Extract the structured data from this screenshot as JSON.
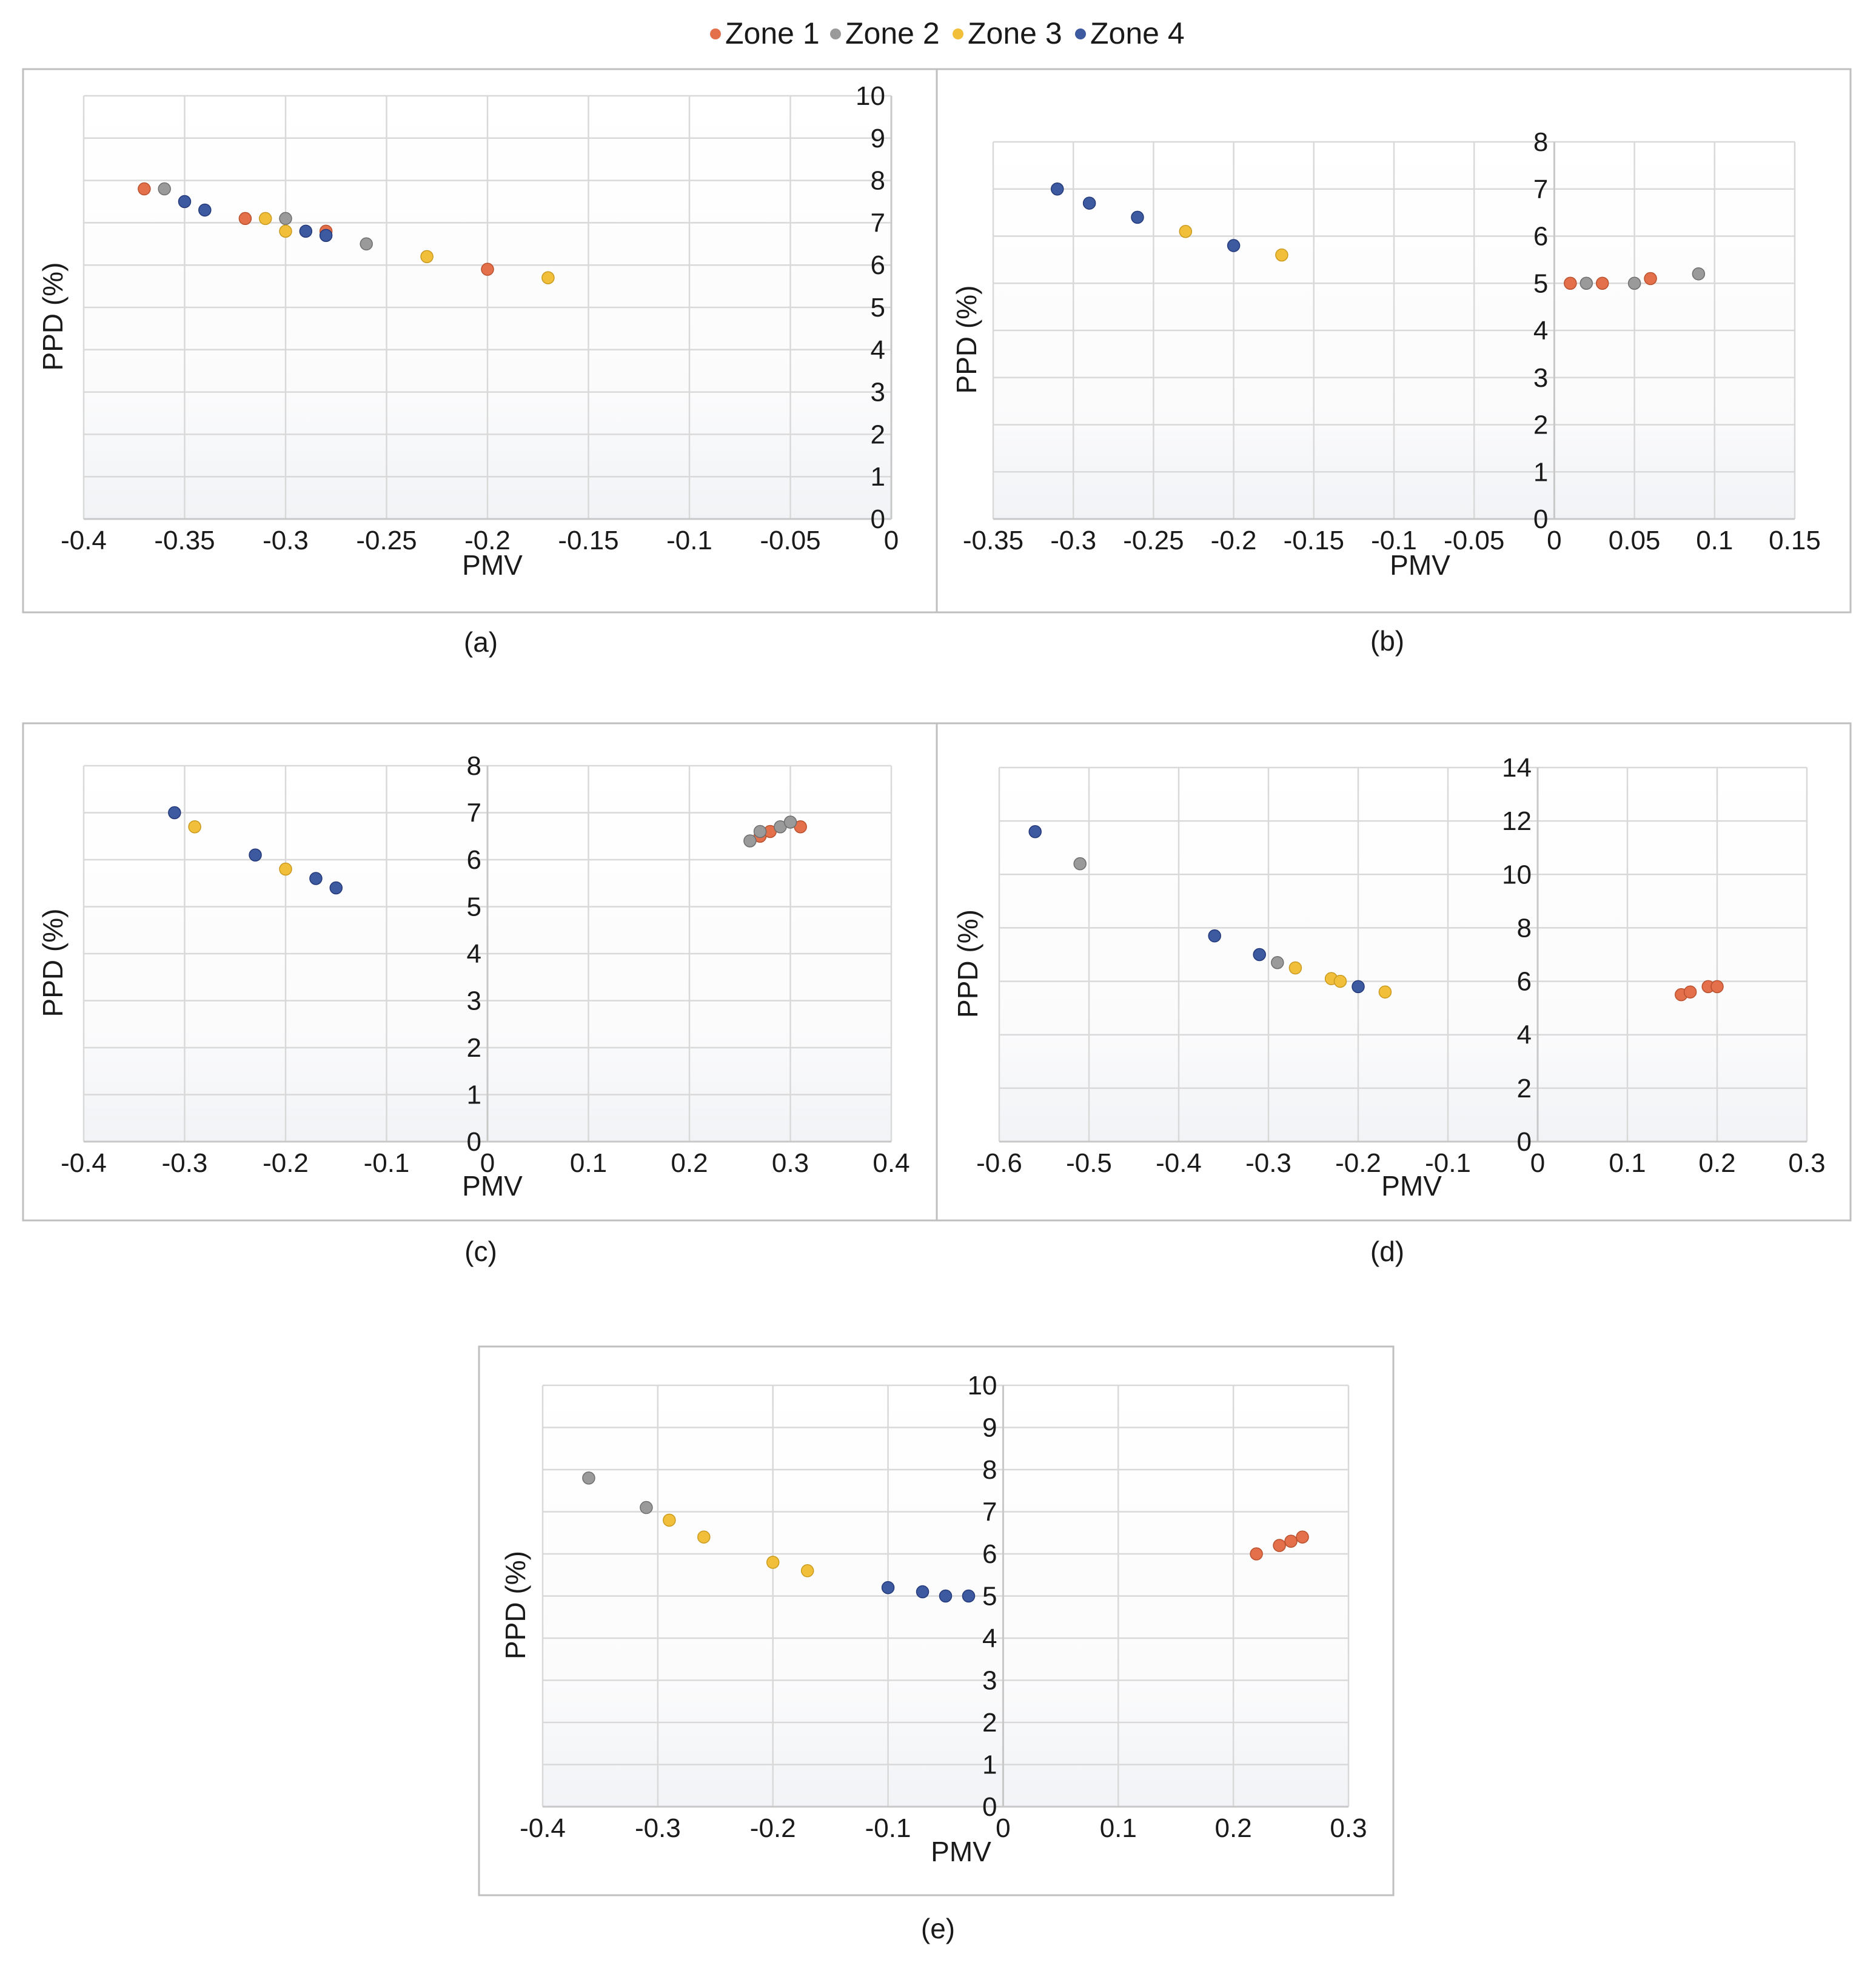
{
  "legend": [
    {
      "name": "Zone 1",
      "color": "#e3704a"
    },
    {
      "name": "Zone 2",
      "color": "#9a9a9a"
    },
    {
      "name": "Zone 3",
      "color": "#f2bf3a"
    },
    {
      "name": "Zone 4",
      "color": "#3d5aa0"
    }
  ],
  "chart_data": [
    {
      "type": "scatter",
      "caption": "(a)",
      "xlabel": "PMV",
      "ylabel": "PPD (%)",
      "xlim": [
        -0.4,
        0
      ],
      "ylim": [
        0,
        10
      ],
      "xticks": [
        "-0.4",
        "-0.35",
        "-0.3",
        "-0.25",
        "-0.2",
        "-0.15",
        "-0.1",
        "-0.05",
        "0"
      ],
      "yticks": [
        "0",
        "1",
        "2",
        "3",
        "4",
        "5",
        "6",
        "7",
        "8",
        "9",
        "10"
      ],
      "series": [
        {
          "name": "Zone 1",
          "points": [
            [
              -0.37,
              7.8
            ],
            [
              -0.32,
              7.1
            ],
            [
              -0.28,
              6.8
            ],
            [
              -0.2,
              5.9
            ]
          ]
        },
        {
          "name": "Zone 2",
          "points": [
            [
              -0.36,
              7.8
            ],
            [
              -0.3,
              7.1
            ],
            [
              -0.26,
              6.5
            ]
          ]
        },
        {
          "name": "Zone 3",
          "points": [
            [
              -0.31,
              7.1
            ],
            [
              -0.3,
              6.8
            ],
            [
              -0.23,
              6.2
            ],
            [
              -0.17,
              5.7
            ]
          ]
        },
        {
          "name": "Zone 4",
          "points": [
            [
              -0.35,
              7.5
            ],
            [
              -0.34,
              7.3
            ],
            [
              -0.29,
              6.8
            ],
            [
              -0.28,
              6.7
            ]
          ]
        }
      ]
    },
    {
      "type": "scatter",
      "caption": "(b)",
      "xlabel": "PMV",
      "ylabel": "PPD (%)",
      "xlim": [
        -0.35,
        0.15
      ],
      "ylim": [
        0,
        8
      ],
      "xticks": [
        "-0.35",
        "-0.3",
        "-0.25",
        "-0.2",
        "-0.15",
        "-0.1",
        "-0.05",
        "0",
        "0.05",
        "0.1",
        "0.15"
      ],
      "yticks": [
        "0",
        "1",
        "2",
        "3",
        "4",
        "5",
        "6",
        "7",
        "8"
      ],
      "series": [
        {
          "name": "Zone 1",
          "points": [
            [
              0.01,
              5.0
            ],
            [
              0.03,
              5.0
            ],
            [
              0.06,
              5.1
            ]
          ]
        },
        {
          "name": "Zone 2",
          "points": [
            [
              0.02,
              5.0
            ],
            [
              0.05,
              5.0
            ],
            [
              0.09,
              5.2
            ]
          ]
        },
        {
          "name": "Zone 3",
          "points": [
            [
              -0.23,
              6.1
            ],
            [
              -0.17,
              5.6
            ]
          ]
        },
        {
          "name": "Zone 4",
          "points": [
            [
              -0.31,
              7.0
            ],
            [
              -0.29,
              6.7
            ],
            [
              -0.26,
              6.4
            ],
            [
              -0.2,
              5.8
            ]
          ]
        }
      ]
    },
    {
      "type": "scatter",
      "caption": "(c)",
      "xlabel": "PMV",
      "ylabel": "PPD (%)",
      "xlim": [
        -0.4,
        0.4
      ],
      "ylim": [
        0,
        8
      ],
      "xticks": [
        "-0.4",
        "-0.3",
        "-0.2",
        "-0.1",
        "0",
        "0.1",
        "0.2",
        "0.3",
        "0.4"
      ],
      "yticks": [
        "0",
        "1",
        "2",
        "3",
        "4",
        "5",
        "6",
        "7",
        "8"
      ],
      "series": [
        {
          "name": "Zone 1",
          "points": [
            [
              0.27,
              6.5
            ],
            [
              0.28,
              6.6
            ],
            [
              0.31,
              6.7
            ]
          ]
        },
        {
          "name": "Zone 2",
          "points": [
            [
              0.26,
              6.4
            ],
            [
              0.27,
              6.6
            ],
            [
              0.29,
              6.7
            ],
            [
              0.3,
              6.8
            ]
          ]
        },
        {
          "name": "Zone 3",
          "points": [
            [
              -0.29,
              6.7
            ],
            [
              -0.2,
              5.8
            ]
          ]
        },
        {
          "name": "Zone 4",
          "points": [
            [
              -0.31,
              7.0
            ],
            [
              -0.23,
              6.1
            ],
            [
              -0.17,
              5.6
            ],
            [
              -0.15,
              5.4
            ]
          ]
        }
      ]
    },
    {
      "type": "scatter",
      "caption": "(d)",
      "xlabel": "PMV",
      "ylabel": "PPD (%)",
      "xlim": [
        -0.6,
        0.3
      ],
      "ylim": [
        0,
        14
      ],
      "xticks": [
        "-0.6",
        "-0.5",
        "-0.4",
        "-0.3",
        "-0.2",
        "-0.1",
        "0",
        "0.1",
        "0.2",
        "0.3"
      ],
      "yticks": [
        "0",
        "2",
        "4",
        "6",
        "8",
        "10",
        "12",
        "14"
      ],
      "series": [
        {
          "name": "Zone 1",
          "points": [
            [
              0.16,
              5.5
            ],
            [
              0.17,
              5.6
            ],
            [
              0.19,
              5.8
            ],
            [
              0.2,
              5.8
            ]
          ]
        },
        {
          "name": "Zone 2",
          "points": [
            [
              -0.51,
              10.4
            ],
            [
              -0.29,
              6.7
            ]
          ]
        },
        {
          "name": "Zone 3",
          "points": [
            [
              -0.27,
              6.5
            ],
            [
              -0.23,
              6.1
            ],
            [
              -0.22,
              6.0
            ],
            [
              -0.17,
              5.6
            ]
          ]
        },
        {
          "name": "Zone 4",
          "points": [
            [
              -0.56,
              11.6
            ],
            [
              -0.36,
              7.7
            ],
            [
              -0.31,
              7.0
            ],
            [
              -0.2,
              5.8
            ]
          ]
        }
      ]
    },
    {
      "type": "scatter",
      "caption": "(e)",
      "xlabel": "PMV",
      "ylabel": "PPD (%)",
      "xlim": [
        -0.4,
        0.3
      ],
      "ylim": [
        0,
        10
      ],
      "xticks": [
        "-0.4",
        "-0.3",
        "-0.2",
        "-0.1",
        "0",
        "0.1",
        "0.2",
        "0.3"
      ],
      "yticks": [
        "0",
        "1",
        "2",
        "3",
        "4",
        "5",
        "6",
        "7",
        "8",
        "9",
        "10"
      ],
      "series": [
        {
          "name": "Zone 1",
          "points": [
            [
              0.22,
              6.0
            ],
            [
              0.24,
              6.2
            ],
            [
              0.25,
              6.3
            ],
            [
              0.26,
              6.4
            ]
          ]
        },
        {
          "name": "Zone 2",
          "points": [
            [
              -0.36,
              7.8
            ],
            [
              -0.31,
              7.1
            ]
          ]
        },
        {
          "name": "Zone 3",
          "points": [
            [
              -0.29,
              6.8
            ],
            [
              -0.26,
              6.4
            ],
            [
              -0.2,
              5.8
            ],
            [
              -0.17,
              5.6
            ]
          ]
        },
        {
          "name": "Zone 4",
          "points": [
            [
              -0.1,
              5.2
            ],
            [
              -0.07,
              5.1
            ],
            [
              -0.05,
              5.0
            ],
            [
              -0.03,
              5.0
            ]
          ]
        }
      ]
    }
  ]
}
